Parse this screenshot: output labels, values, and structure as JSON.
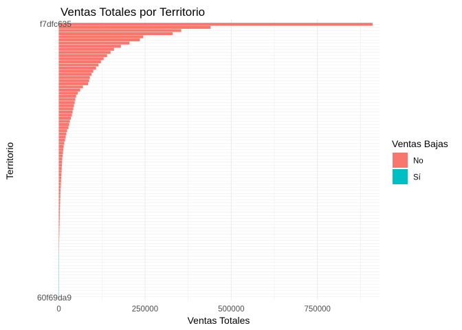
{
  "chart_data": {
    "type": "bar",
    "orientation": "horizontal",
    "title": "Ventas Totales por Territorio",
    "xlabel": "Ventas Totales",
    "ylabel": "Territorio",
    "xlim": [
      -15000,
      930000
    ],
    "x_ticks": [
      0,
      250000,
      500000,
      750000
    ],
    "x_tick_labels": [
      "0",
      "250000",
      "500000",
      "750000"
    ],
    "grid": true,
    "legend": {
      "title": "Ventas Bajas",
      "position": "right",
      "entries": [
        {
          "label": "No",
          "color": "#F8766D"
        },
        {
          "label": "Sí",
          "color": "#00BFC4"
        }
      ]
    },
    "top_category_label": "f7dfc635",
    "bottom_category_label": "60f69da9",
    "series": [
      {
        "name": "No",
        "color": "#F8766D",
        "values": [
          910000,
          440000,
          355000,
          330000,
          245000,
          235000,
          205000,
          180000,
          160000,
          150000,
          140000,
          130000,
          122000,
          115000,
          108000,
          100000,
          95000,
          90000,
          88000,
          85000,
          70000,
          62000,
          55000,
          50000,
          48000,
          46000,
          44000,
          42000,
          40000,
          38000,
          35000,
          32000,
          30000,
          28000,
          24000,
          22000,
          20000,
          18000,
          16000,
          14000,
          13000,
          12000,
          11000,
          10000,
          9500,
          9000,
          8500,
          8000,
          7500,
          7000,
          6500,
          6000,
          5500,
          5000,
          4700,
          4400,
          4100,
          3800,
          3500,
          3200,
          3000,
          2800,
          2600,
          2400,
          2200,
          2000,
          1800,
          1600,
          1400,
          1200,
          1000,
          900,
          800
        ]
      },
      {
        "name": "Sí",
        "color": "#00BFC4",
        "values": [
          600,
          500,
          420,
          350,
          300,
          250,
          200,
          160,
          120,
          90,
          70,
          50,
          30,
          20,
          10
        ]
      }
    ]
  }
}
